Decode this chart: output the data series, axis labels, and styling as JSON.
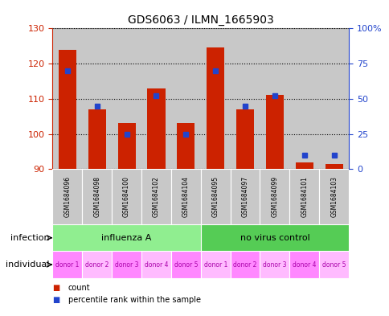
{
  "title": "GDS6063 / ILMN_1665903",
  "samples": [
    "GSM1684096",
    "GSM1684098",
    "GSM1684100",
    "GSM1684102",
    "GSM1684104",
    "GSM1684095",
    "GSM1684097",
    "GSM1684099",
    "GSM1684101",
    "GSM1684103"
  ],
  "counts": [
    124.0,
    107.0,
    103.0,
    113.0,
    103.0,
    124.5,
    107.0,
    111.0,
    92.0,
    91.5
  ],
  "percentiles": [
    70,
    45,
    25,
    52,
    25,
    70,
    45,
    52,
    10,
    10
  ],
  "ylim_left": [
    90,
    130
  ],
  "ylim_right": [
    0,
    100
  ],
  "yticks_left": [
    90,
    100,
    110,
    120,
    130
  ],
  "yticks_right": [
    0,
    25,
    50,
    75,
    100
  ],
  "ytick_labels_right": [
    "0",
    "25",
    "50",
    "75",
    "100%"
  ],
  "groups": [
    {
      "label": "influenza A",
      "start": 0,
      "end": 5,
      "color": "#90ee90"
    },
    {
      "label": "no virus control",
      "start": 5,
      "end": 10,
      "color": "#55cc55"
    }
  ],
  "individuals": [
    "donor 1",
    "donor 2",
    "donor 3",
    "donor 4",
    "donor 5",
    "donor 1",
    "donor 2",
    "donor 3",
    "donor 4",
    "donor 5"
  ],
  "bar_color": "#cc2200",
  "dot_color": "#2244cc",
  "bar_width": 0.6,
  "base_value": 90,
  "grid_color": "#000000",
  "sample_bg": "#c8c8c8",
  "plot_bg": "#ffffff",
  "left_axis_color": "#cc2200",
  "right_axis_color": "#2244cc",
  "legend_items": [
    {
      "label": "count",
      "color": "#cc2200"
    },
    {
      "label": "percentile rank within the sample",
      "color": "#2244cc"
    }
  ],
  "infection_label": "infection",
  "individual_label": "individual",
  "ind_colors_odd": "#ff88ff",
  "ind_colors_even": "#ffbbff"
}
